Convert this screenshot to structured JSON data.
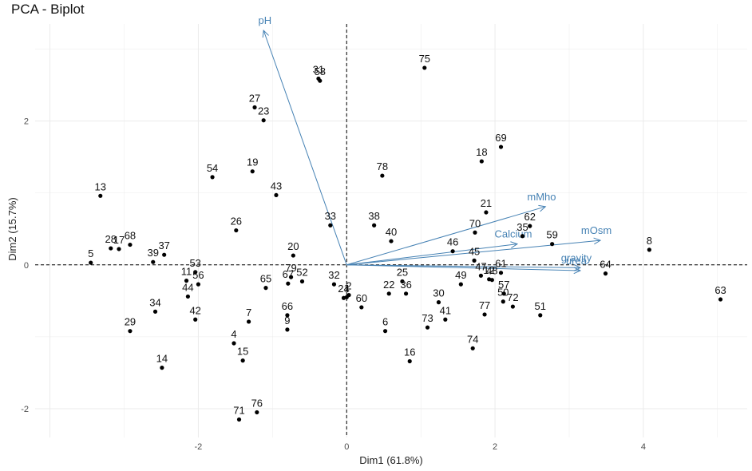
{
  "chart_data": {
    "type": "scatter",
    "title": "PCA - Biplot",
    "xlabel": "Dim1 (61.8%)",
    "ylabel": "Dim2 (15.7%)",
    "xlim": [
      -4.2,
      5.4
    ],
    "ylim": [
      -2.4,
      3.35
    ],
    "xticks": [
      -2,
      0,
      2,
      4
    ],
    "yticks": [
      -2,
      0,
      2
    ],
    "colors": {
      "points": "#000000",
      "arrows": "#4682B4",
      "grid": "#ebebeb",
      "zero_line": "#000000"
    },
    "points": [
      {
        "label": "1",
        "x": 0.0,
        "y": -0.45
      },
      {
        "label": "2",
        "x": 0.03,
        "y": -0.42
      },
      {
        "label": "4",
        "x": -1.52,
        "y": -1.09
      },
      {
        "label": "5",
        "x": -3.45,
        "y": 0.03
      },
      {
        "label": "6",
        "x": 0.52,
        "y": -0.92
      },
      {
        "label": "7",
        "x": -1.32,
        "y": -0.79
      },
      {
        "label": "8",
        "x": 4.08,
        "y": 0.21
      },
      {
        "label": "9",
        "x": -0.8,
        "y": -0.9
      },
      {
        "label": "11",
        "x": -2.16,
        "y": -0.22
      },
      {
        "label": "12",
        "x": 1.92,
        "y": -0.2
      },
      {
        "label": "13",
        "x": -3.32,
        "y": 0.96
      },
      {
        "label": "14",
        "x": -2.49,
        "y": -1.43
      },
      {
        "label": "15",
        "x": -1.4,
        "y": -1.33
      },
      {
        "label": "16",
        "x": 0.85,
        "y": -1.34
      },
      {
        "label": "17",
        "x": -3.07,
        "y": 0.22
      },
      {
        "label": "18",
        "x": 1.82,
        "y": 1.44
      },
      {
        "label": "19",
        "x": -1.27,
        "y": 1.3
      },
      {
        "label": "20",
        "x": -0.72,
        "y": 0.13
      },
      {
        "label": "21",
        "x": 1.88,
        "y": 0.73
      },
      {
        "label": "22",
        "x": 0.57,
        "y": -0.4
      },
      {
        "label": "23",
        "x": -1.12,
        "y": 2.01
      },
      {
        "label": "24",
        "x": -0.04,
        "y": -0.46
      },
      {
        "label": "25",
        "x": 0.75,
        "y": -0.23
      },
      {
        "label": "26",
        "x": -1.49,
        "y": 0.48
      },
      {
        "label": "27",
        "x": -1.24,
        "y": 2.19
      },
      {
        "label": "28",
        "x": -3.18,
        "y": 0.23
      },
      {
        "label": "29",
        "x": -2.92,
        "y": -0.92
      },
      {
        "label": "30",
        "x": 1.24,
        "y": -0.52
      },
      {
        "label": "31",
        "x": -0.38,
        "y": 2.59
      },
      {
        "label": "32",
        "x": -0.17,
        "y": -0.27
      },
      {
        "label": "33",
        "x": -0.22,
        "y": 0.55
      },
      {
        "label": "34",
        "x": -2.58,
        "y": -0.65
      },
      {
        "label": "35",
        "x": 2.37,
        "y": 0.4
      },
      {
        "label": "36",
        "x": 0.8,
        "y": -0.4
      },
      {
        "label": "37",
        "x": -2.46,
        "y": 0.14
      },
      {
        "label": "38",
        "x": 0.37,
        "y": 0.55
      },
      {
        "label": "39",
        "x": -2.61,
        "y": 0.04
      },
      {
        "label": "40",
        "x": 0.6,
        "y": 0.33
      },
      {
        "label": "41",
        "x": 1.33,
        "y": -0.76
      },
      {
        "label": "42",
        "x": -2.04,
        "y": -0.76
      },
      {
        "label": "43",
        "x": -0.95,
        "y": 0.97
      },
      {
        "label": "44",
        "x": -2.14,
        "y": -0.44
      },
      {
        "label": "45",
        "x": 1.72,
        "y": 0.06
      },
      {
        "label": "46",
        "x": 1.43,
        "y": 0.19
      },
      {
        "label": "47",
        "x": 1.81,
        "y": -0.15
      },
      {
        "label": "48",
        "x": 1.96,
        "y": -0.21
      },
      {
        "label": "49",
        "x": 1.54,
        "y": -0.27
      },
      {
        "label": "50",
        "x": 2.11,
        "y": -0.51
      },
      {
        "label": "51",
        "x": 2.61,
        "y": -0.7
      },
      {
        "label": "52",
        "x": -0.6,
        "y": -0.23
      },
      {
        "label": "53",
        "x": -2.04,
        "y": -0.1
      },
      {
        "label": "54",
        "x": -1.81,
        "y": 1.22
      },
      {
        "label": "56",
        "x": -2.0,
        "y": -0.27
      },
      {
        "label": "57",
        "x": 2.12,
        "y": -0.4
      },
      {
        "label": "58",
        "x": -0.36,
        "y": 2.56
      },
      {
        "label": "59",
        "x": 2.77,
        "y": 0.29
      },
      {
        "label": "60",
        "x": 0.2,
        "y": -0.59
      },
      {
        "label": "61",
        "x": 2.08,
        "y": -0.11
      },
      {
        "label": "62",
        "x": 2.47,
        "y": 0.54
      },
      {
        "label": "63",
        "x": 5.04,
        "y": -0.48
      },
      {
        "label": "64",
        "x": 3.49,
        "y": -0.12
      },
      {
        "label": "65",
        "x": -1.09,
        "y": -0.32
      },
      {
        "label": "66",
        "x": -0.8,
        "y": -0.7
      },
      {
        "label": "67",
        "x": -0.79,
        "y": -0.26
      },
      {
        "label": "68",
        "x": -2.92,
        "y": 0.28
      },
      {
        "label": "69",
        "x": 2.08,
        "y": 1.64
      },
      {
        "label": "70",
        "x": 1.73,
        "y": 0.45
      },
      {
        "label": "71",
        "x": -1.45,
        "y": -2.15
      },
      {
        "label": "72",
        "x": 2.24,
        "y": -0.58
      },
      {
        "label": "73",
        "x": 1.09,
        "y": -0.87
      },
      {
        "label": "74",
        "x": 1.7,
        "y": -1.16
      },
      {
        "label": "75",
        "x": 1.05,
        "y": 2.74
      },
      {
        "label": "76",
        "x": -1.21,
        "y": -2.05
      },
      {
        "label": "77",
        "x": 1.86,
        "y": -0.69
      },
      {
        "label": "78",
        "x": 0.48,
        "y": 1.24
      },
      {
        "label": "79",
        "x": -0.75,
        "y": -0.17
      }
    ],
    "loadings": [
      {
        "label": "pH",
        "x": -1.12,
        "y": 3.26
      },
      {
        "label": "mMho",
        "x": 2.68,
        "y": 0.81
      },
      {
        "label": "Calcium",
        "x": 2.3,
        "y": 0.29
      },
      {
        "label": "mOsm",
        "x": 3.42,
        "y": 0.34
      },
      {
        "label": "gravity",
        "x": 3.15,
        "y": -0.04
      },
      {
        "label": "urea",
        "x": 3.15,
        "y": -0.08
      }
    ]
  }
}
